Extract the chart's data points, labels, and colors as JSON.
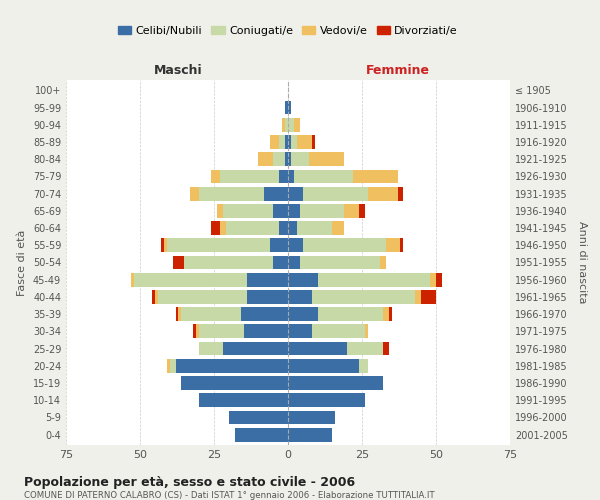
{
  "age_groups": [
    "0-4",
    "5-9",
    "10-14",
    "15-19",
    "20-24",
    "25-29",
    "30-34",
    "35-39",
    "40-44",
    "45-49",
    "50-54",
    "55-59",
    "60-64",
    "65-69",
    "70-74",
    "75-79",
    "80-84",
    "85-89",
    "90-94",
    "95-99",
    "100+"
  ],
  "birth_years": [
    "2001-2005",
    "1996-2000",
    "1991-1995",
    "1986-1990",
    "1981-1985",
    "1976-1980",
    "1971-1975",
    "1966-1970",
    "1961-1965",
    "1956-1960",
    "1951-1955",
    "1946-1950",
    "1941-1945",
    "1936-1940",
    "1931-1935",
    "1926-1930",
    "1921-1925",
    "1916-1920",
    "1911-1915",
    "1906-1910",
    "≤ 1905"
  ],
  "male": {
    "celibi": [
      18,
      20,
      30,
      36,
      38,
      22,
      15,
      16,
      14,
      14,
      5,
      6,
      3,
      5,
      8,
      3,
      1,
      1,
      0,
      1,
      0
    ],
    "coniugati": [
      0,
      0,
      0,
      0,
      2,
      8,
      15,
      20,
      30,
      38,
      30,
      35,
      18,
      17,
      22,
      20,
      4,
      2,
      1,
      0,
      0
    ],
    "vedovi": [
      0,
      0,
      0,
      0,
      1,
      0,
      1,
      1,
      1,
      1,
      0,
      1,
      2,
      2,
      3,
      3,
      5,
      3,
      1,
      0,
      0
    ],
    "divorziati": [
      0,
      0,
      0,
      0,
      0,
      0,
      1,
      1,
      1,
      0,
      4,
      1,
      3,
      0,
      0,
      0,
      0,
      0,
      0,
      0,
      0
    ]
  },
  "female": {
    "nubili": [
      15,
      16,
      26,
      32,
      24,
      20,
      8,
      10,
      8,
      10,
      4,
      5,
      3,
      4,
      5,
      2,
      1,
      1,
      0,
      1,
      0
    ],
    "coniugate": [
      0,
      0,
      0,
      0,
      3,
      12,
      18,
      22,
      35,
      38,
      27,
      28,
      12,
      15,
      22,
      20,
      6,
      2,
      2,
      0,
      0
    ],
    "vedove": [
      0,
      0,
      0,
      0,
      0,
      0,
      1,
      2,
      2,
      2,
      2,
      5,
      4,
      5,
      10,
      15,
      12,
      5,
      2,
      0,
      0
    ],
    "divorziate": [
      0,
      0,
      0,
      0,
      0,
      2,
      0,
      1,
      5,
      2,
      0,
      1,
      0,
      2,
      2,
      0,
      0,
      1,
      0,
      0,
      0
    ]
  },
  "colors": {
    "celibi": "#3a6ea5",
    "coniugati": "#c8d9a8",
    "vedovi": "#f0c060",
    "divorziati": "#cc2200"
  },
  "xlim": 75,
  "title": "Popolazione per età, sesso e stato civile - 2006",
  "subtitle": "COMUNE DI PATERNO CALABRO (CS) - Dati ISTAT 1° gennaio 2006 - Elaborazione TUTTITALIA.IT",
  "ylabel_left": "Fasce di età",
  "ylabel_right": "Anni di nascita",
  "xlabel_male": "Maschi",
  "xlabel_female": "Femmine",
  "legend_labels": [
    "Celibi/Nubili",
    "Coniugati/e",
    "Vedovi/e",
    "Divorziati/e"
  ],
  "bg_color": "#f0f0eb",
  "plot_bg": "#ffffff"
}
